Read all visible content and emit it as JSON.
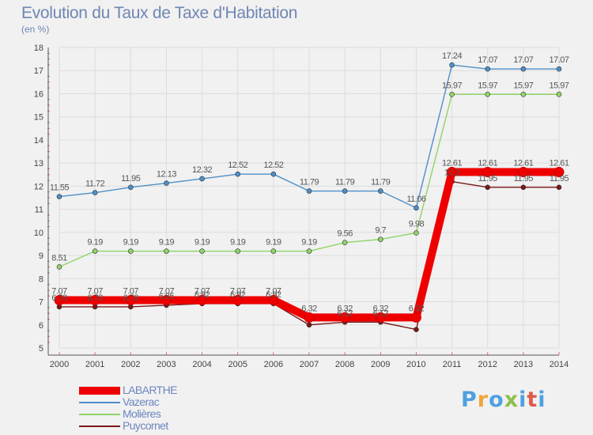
{
  "title": "Evolution du Taux de Taxe d'Habitation",
  "subtitle": "(en %)",
  "brand": "Proxiti",
  "brand_colors": [
    "#4fa0e0",
    "#f2a43a",
    "#4fa0e0",
    "#8cc04a",
    "#4fa0e0",
    "#e05a4a",
    "#4fa0e0"
  ],
  "chart_data": {
    "type": "line",
    "x": [
      "2000",
      "2001",
      "2002",
      "2003",
      "2004",
      "2005",
      "2006",
      "2007",
      "2008",
      "2009",
      "2010",
      "2011",
      "2012",
      "2013",
      "2014"
    ],
    "ylim": [
      5,
      18
    ],
    "yticks": [
      "5",
      "6",
      "7",
      "8",
      "9",
      "10",
      "11",
      "12",
      "13",
      "14",
      "15",
      "16",
      "17",
      "18"
    ],
    "grid": true,
    "legend_position": "bottom-left",
    "series": [
      {
        "name": "LABARTHE",
        "color": "#ee0000",
        "values": [
          7.07,
          7.07,
          7.07,
          7.07,
          7.07,
          7.07,
          7.07,
          6.32,
          6.32,
          6.32,
          6.32,
          12.61,
          12.61,
          12.61,
          12.61
        ],
        "labels": [
          "7.07",
          "7.07",
          "7.07",
          "7.07",
          "7.07",
          "7.07",
          "7.07",
          "6.32",
          "6.32",
          "6.32",
          "6.32",
          "12.61",
          "12.61",
          "12.61",
          "12.61"
        ]
      },
      {
        "name": "Vazerac",
        "color": "#4d8fc7",
        "values": [
          11.55,
          11.72,
          11.95,
          12.13,
          12.32,
          12.52,
          12.52,
          11.79,
          11.79,
          11.79,
          11.06,
          17.24,
          17.07,
          17.07,
          17.07
        ],
        "labels": [
          "11.55",
          "11.72",
          "11.95",
          "12.13",
          "12.32",
          "12.52",
          "12.52",
          "11.79",
          "11.79",
          "11.79",
          "11.06",
          "17.24",
          "17.07",
          "17.07",
          "17.07"
        ]
      },
      {
        "name": "Molières",
        "color": "#8fd468",
        "values": [
          8.51,
          9.19,
          9.19,
          9.19,
          9.19,
          9.19,
          9.19,
          9.19,
          9.56,
          9.7,
          9.98,
          15.97,
          15.97,
          15.97,
          15.97
        ],
        "labels": [
          "8.51",
          "9.19",
          "9.19",
          "9.19",
          "9.19",
          "9.19",
          "9.19",
          "9.19",
          "9.56",
          "9.7",
          "9.98",
          "15.97",
          "15.97",
          "15.97",
          "15.97"
        ]
      },
      {
        "name": "Puycornet",
        "color": "#7a1818",
        "values": [
          6.78,
          6.78,
          6.78,
          6.85,
          6.92,
          6.92,
          6.92,
          6.0,
          6.12,
          6.12,
          5.8,
          12.2,
          11.95,
          11.95,
          11.95
        ],
        "labels": [
          "6.78",
          "6.78",
          "6.78",
          "6.85",
          "6.92",
          "6.92",
          "6.92",
          "",
          "6.12",
          "6.12",
          "",
          "12.2",
          "11.95",
          "11.95",
          "11.95"
        ]
      }
    ]
  }
}
